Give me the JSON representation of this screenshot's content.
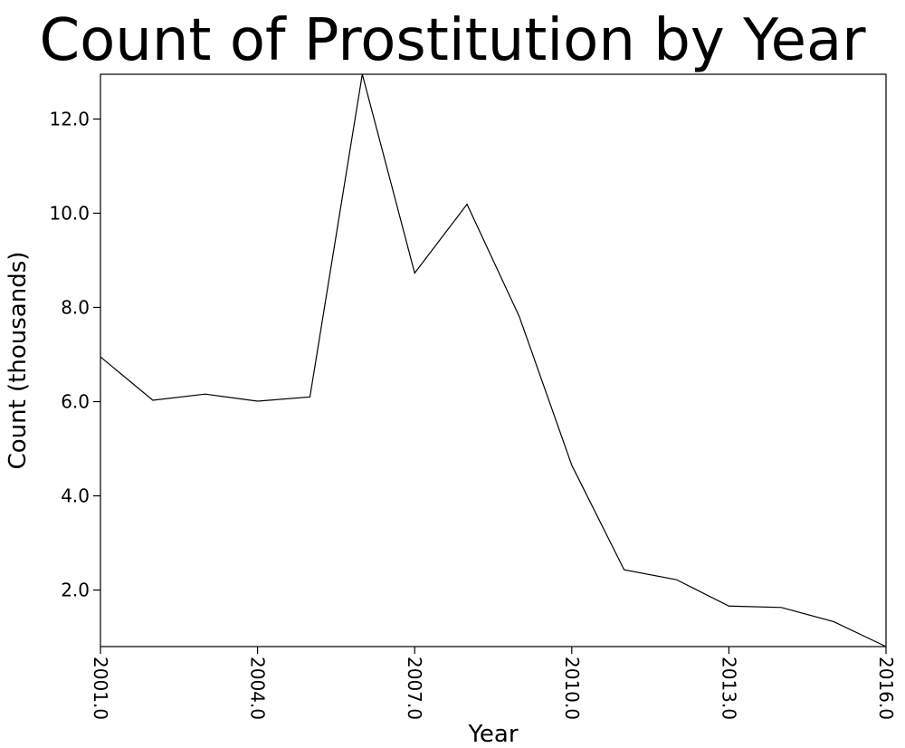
{
  "chart_data": {
    "type": "line",
    "title": "Count of Prostitution by Year",
    "xlabel": "Year",
    "ylabel": "Count (thousands)",
    "x": [
      2001,
      2002,
      2003,
      2004,
      2005,
      2006,
      2007,
      2008,
      2009,
      2010,
      2011,
      2012,
      2013,
      2014,
      2015,
      2016
    ],
    "series": [
      {
        "values": [
          6.95,
          6.03,
          6.16,
          6.01,
          6.1,
          12.95,
          8.73,
          10.19,
          7.8,
          4.65,
          2.43,
          2.22,
          1.66,
          1.63,
          1.33,
          0.8
        ]
      }
    ],
    "xlim": [
      2001,
      2016
    ],
    "ylim": [
      0.8,
      12.95
    ],
    "xticks": [
      "2001.0",
      "2004.0",
      "2007.0",
      "2010.0",
      "2013.0",
      "2016.0"
    ],
    "yticks": [
      "2.0",
      "4.0",
      "6.0",
      "8.0",
      "10.0",
      "12.0"
    ],
    "grid": false,
    "line_color": "#000000"
  }
}
